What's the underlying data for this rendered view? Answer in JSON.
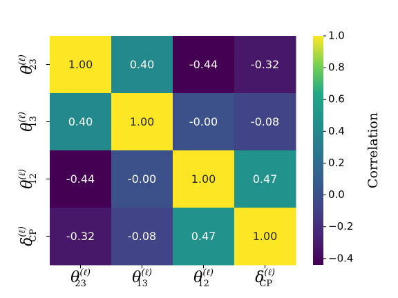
{
  "chart_data": {
    "type": "heatmap",
    "title": "",
    "row_labels": [
      {
        "var": "θ",
        "sup": "(ℓ)",
        "sub": "23"
      },
      {
        "var": "θ",
        "sup": "(ℓ)",
        "sub": "13"
      },
      {
        "var": "θ",
        "sup": "(ℓ)",
        "sub": "12"
      },
      {
        "var": "δ",
        "sup": "(ℓ)",
        "sub": "CP"
      }
    ],
    "col_labels": [
      {
        "var": "θ",
        "sup": "(ℓ)",
        "sub": "23"
      },
      {
        "var": "θ",
        "sup": "(ℓ)",
        "sub": "13"
      },
      {
        "var": "θ",
        "sup": "(ℓ)",
        "sub": "12"
      },
      {
        "var": "δ",
        "sup": "(ℓ)",
        "sub": "CP"
      }
    ],
    "values": [
      [
        1.0,
        0.4,
        -0.44,
        -0.32
      ],
      [
        0.4,
        1.0,
        -0.0,
        -0.08
      ],
      [
        -0.44,
        -0.0,
        1.0,
        0.47
      ],
      [
        -0.32,
        -0.08,
        0.47,
        1.0
      ]
    ],
    "cell_text": [
      [
        "1.00",
        "0.40",
        "-0.44",
        "-0.32"
      ],
      [
        "0.40",
        "1.00",
        "-0.00",
        "-0.08"
      ],
      [
        "-0.44",
        "-0.00",
        "1.00",
        "0.47"
      ],
      [
        "-0.32",
        "-0.08",
        "0.47",
        "1.00"
      ]
    ],
    "colormap": "viridis",
    "vmin": -0.44,
    "vmax": 1.0,
    "colorbar": {
      "label": "Correlation",
      "ticks": [
        1.0,
        0.8,
        0.6,
        0.4,
        0.2,
        0.0,
        -0.2,
        -0.4
      ],
      "tick_labels": [
        "1.0",
        "0.8",
        "0.6",
        "0.4",
        "0.2",
        "0.0",
        "−0.2",
        "−0.4"
      ]
    }
  }
}
